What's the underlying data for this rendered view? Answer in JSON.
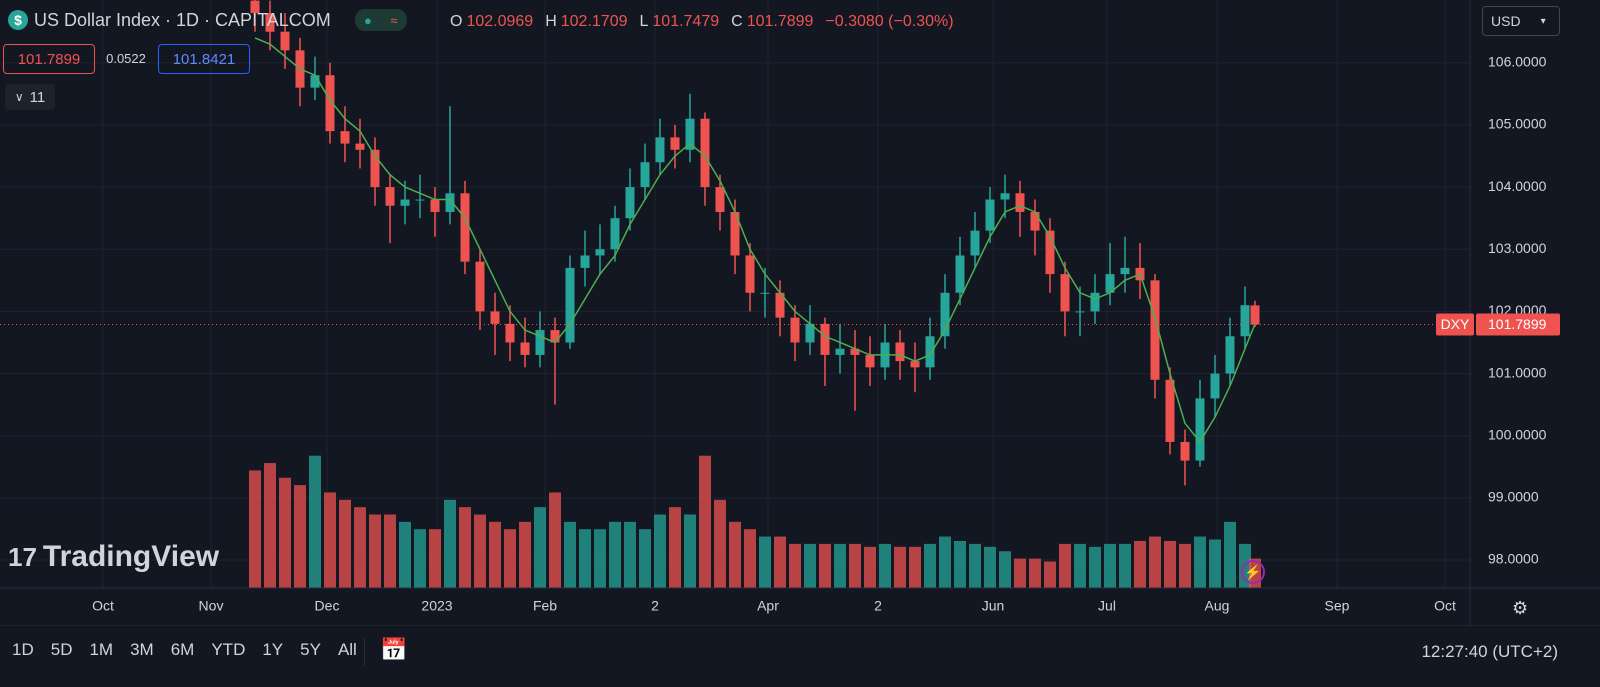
{
  "chart_data": {
    "type": "candlestick",
    "x": [
      0,
      3,
      6,
      9,
      12,
      15,
      18,
      21,
      24,
      27,
      30,
      33,
      36,
      39,
      42,
      45,
      48,
      51,
      54,
      57,
      60,
      63,
      66,
      69,
      72,
      75,
      78,
      81,
      84,
      87,
      90,
      93,
      96,
      99,
      102,
      105,
      108,
      111,
      114,
      117,
      120,
      123,
      126,
      129,
      132,
      135,
      138,
      141,
      144,
      147,
      150,
      153,
      156,
      159,
      162,
      165,
      168,
      171,
      174,
      177,
      180,
      183,
      186,
      189,
      192,
      195,
      198,
      200
    ],
    "ohlc": [
      [
        107.0,
        107.3,
        106.5,
        106.8
      ],
      [
        106.8,
        107.0,
        106.2,
        106.5
      ],
      [
        106.5,
        106.8,
        105.9,
        106.2
      ],
      [
        106.2,
        106.4,
        105.3,
        105.6
      ],
      [
        105.6,
        106.1,
        105.4,
        105.8
      ],
      [
        105.8,
        106.0,
        104.7,
        104.9
      ],
      [
        104.9,
        105.3,
        104.4,
        104.7
      ],
      [
        104.7,
        105.1,
        104.3,
        104.6
      ],
      [
        104.6,
        104.8,
        103.7,
        104.0
      ],
      [
        104.0,
        104.2,
        103.1,
        103.7
      ],
      [
        103.7,
        104.1,
        103.4,
        103.8
      ],
      [
        103.8,
        104.2,
        103.5,
        103.8
      ],
      [
        103.8,
        104.0,
        103.2,
        103.6
      ],
      [
        103.6,
        105.3,
        103.4,
        103.9
      ],
      [
        103.9,
        104.1,
        102.6,
        102.8
      ],
      [
        102.8,
        103.0,
        101.7,
        102.0
      ],
      [
        102.0,
        102.3,
        101.3,
        101.8
      ],
      [
        101.8,
        102.1,
        101.2,
        101.5
      ],
      [
        101.5,
        101.9,
        101.1,
        101.3
      ],
      [
        101.3,
        102.0,
        101.1,
        101.7
      ],
      [
        101.7,
        101.9,
        100.5,
        101.5
      ],
      [
        101.5,
        102.9,
        101.4,
        102.7
      ],
      [
        102.7,
        103.3,
        102.4,
        102.9
      ],
      [
        102.9,
        103.4,
        102.6,
        103.0
      ],
      [
        103.0,
        103.7,
        102.8,
        103.5
      ],
      [
        103.5,
        104.3,
        103.3,
        104.0
      ],
      [
        104.0,
        104.7,
        103.8,
        104.4
      ],
      [
        104.4,
        105.1,
        104.2,
        104.8
      ],
      [
        104.8,
        105.0,
        104.3,
        104.6
      ],
      [
        104.6,
        105.5,
        104.4,
        105.1
      ],
      [
        105.1,
        105.2,
        103.7,
        104.0
      ],
      [
        104.0,
        104.2,
        103.3,
        103.6
      ],
      [
        103.6,
        103.8,
        102.6,
        102.9
      ],
      [
        102.9,
        103.1,
        102.0,
        102.3
      ],
      [
        102.3,
        102.7,
        101.9,
        102.3
      ],
      [
        102.3,
        102.5,
        101.6,
        101.9
      ],
      [
        101.9,
        102.1,
        101.2,
        101.5
      ],
      [
        101.5,
        102.1,
        101.3,
        101.8
      ],
      [
        101.8,
        101.9,
        100.8,
        101.3
      ],
      [
        101.3,
        101.8,
        101.0,
        101.4
      ],
      [
        101.4,
        101.7,
        100.4,
        101.3
      ],
      [
        101.3,
        101.6,
        100.8,
        101.1
      ],
      [
        101.1,
        101.8,
        100.9,
        101.5
      ],
      [
        101.5,
        101.7,
        100.9,
        101.2
      ],
      [
        101.2,
        101.5,
        100.7,
        101.1
      ],
      [
        101.1,
        101.9,
        100.9,
        101.6
      ],
      [
        101.6,
        102.6,
        101.4,
        102.3
      ],
      [
        102.3,
        103.2,
        102.1,
        102.9
      ],
      [
        102.9,
        103.6,
        102.7,
        103.3
      ],
      [
        103.3,
        104.0,
        103.1,
        103.8
      ],
      [
        103.8,
        104.2,
        103.5,
        103.9
      ],
      [
        103.9,
        104.1,
        103.2,
        103.6
      ],
      [
        103.6,
        103.8,
        102.9,
        103.3
      ],
      [
        103.3,
        103.5,
        102.3,
        102.6
      ],
      [
        102.6,
        102.8,
        101.6,
        102.0
      ],
      [
        102.0,
        102.4,
        101.6,
        102.0
      ],
      [
        102.0,
        102.6,
        101.8,
        102.3
      ],
      [
        102.3,
        103.1,
        102.1,
        102.6
      ],
      [
        102.6,
        103.2,
        102.3,
        102.7
      ],
      [
        102.7,
        103.1,
        102.2,
        102.5
      ],
      [
        102.5,
        102.6,
        100.6,
        100.9
      ],
      [
        100.9,
        101.1,
        99.7,
        99.9
      ],
      [
        99.9,
        100.1,
        99.2,
        99.6
      ],
      [
        99.6,
        100.9,
        99.5,
        100.6
      ],
      [
        100.6,
        101.3,
        100.3,
        101.0
      ],
      [
        101.0,
        101.9,
        100.8,
        101.6
      ],
      [
        101.6,
        102.4,
        101.4,
        102.1
      ],
      [
        102.0969,
        102.1709,
        101.7479,
        101.7899
      ]
    ],
    "ma": [
      106.4,
      106.3,
      106.1,
      105.9,
      105.8,
      105.4,
      105.1,
      104.9,
      104.5,
      104.2,
      104.0,
      103.9,
      103.8,
      103.8,
      103.5,
      103.0,
      102.5,
      102.0,
      101.7,
      101.6,
      101.5,
      101.8,
      102.2,
      102.6,
      102.9,
      103.4,
      103.8,
      104.2,
      104.5,
      104.7,
      104.5,
      104.1,
      103.6,
      103.0,
      102.6,
      102.3,
      102.0,
      101.8,
      101.6,
      101.5,
      101.4,
      101.3,
      101.3,
      101.3,
      101.2,
      101.3,
      101.7,
      102.2,
      102.7,
      103.2,
      103.6,
      103.7,
      103.6,
      103.2,
      102.7,
      102.3,
      102.2,
      102.3,
      102.5,
      102.6,
      101.9,
      101.0,
      100.2,
      99.9,
      100.3,
      100.8,
      101.4,
      101.8
    ],
    "volume": [
      80,
      85,
      75,
      70,
      90,
      65,
      60,
      55,
      50,
      50,
      45,
      40,
      40,
      60,
      55,
      50,
      45,
      40,
      45,
      55,
      65,
      45,
      40,
      40,
      45,
      45,
      40,
      50,
      55,
      50,
      90,
      60,
      45,
      40,
      35,
      35,
      30,
      30,
      30,
      30,
      30,
      28,
      30,
      28,
      28,
      30,
      35,
      32,
      30,
      28,
      25,
      20,
      20,
      18,
      30,
      30,
      28,
      30,
      30,
      32,
      35,
      32,
      30,
      35,
      33,
      45,
      30,
      20
    ],
    "volume_lim": [
      0,
      400
    ],
    "up_color": "#26a69a",
    "down_color": "#ef5350",
    "ma_color": "#4caf50",
    "xlim": [
      -51,
      243
    ],
    "xticks": [
      {
        "value": -30.4,
        "label": "Oct"
      },
      {
        "value": -8.8,
        "label": "Nov"
      },
      {
        "value": 14.4,
        "label": "Dec"
      },
      {
        "value": 36.4,
        "label": "2023"
      },
      {
        "value": 58,
        "label": "Feb"
      },
      {
        "value": 80,
        "label": "2"
      },
      {
        "value": 102.6,
        "label": "Apr"
      },
      {
        "value": 124.6,
        "label": "2"
      },
      {
        "value": 147.6,
        "label": "Jun"
      },
      {
        "value": 170.4,
        "label": "Jul"
      },
      {
        "value": 192.4,
        "label": "Aug"
      },
      {
        "value": 216.4,
        "label": "Sep"
      },
      {
        "value": 238,
        "label": "Oct"
      }
    ],
    "ylim": [
      97.55,
      107.01
    ],
    "yticks": [
      {
        "value": 98,
        "label": "98.0000"
      },
      {
        "value": 99,
        "label": "99.0000"
      },
      {
        "value": 100,
        "label": "100.0000"
      },
      {
        "value": 101,
        "label": "101.0000"
      },
      {
        "value": 102,
        "label": "102.0000"
      },
      {
        "value": 103,
        "label": "103.0000"
      },
      {
        "value": 104,
        "label": "104.0000"
      },
      {
        "value": 105,
        "label": "105.0000"
      },
      {
        "value": 106,
        "label": "106.0000"
      }
    ],
    "grid": true,
    "symbol": "DXY"
  },
  "header": {
    "title": "US Dollar Index · 1D · CAPITALCOM",
    "o_label": "O",
    "open": "102.0969",
    "h_label": "H",
    "high": "102.1709",
    "l_label": "L",
    "low": "101.7479",
    "c_label": "C",
    "close": "101.7899",
    "change": "−0.3080 (−0.30%)",
    "bid": "101.7899",
    "spread": "0.0522",
    "ask": "101.8421",
    "indicators": "11",
    "currency": "USD",
    "brand": "TradingView"
  },
  "toolbar": {
    "ranges": [
      "1D",
      "5D",
      "1M",
      "3M",
      "6M",
      "YTD",
      "1Y",
      "5Y",
      "All"
    ],
    "clock": "12:27:40 (UTC+2)"
  }
}
